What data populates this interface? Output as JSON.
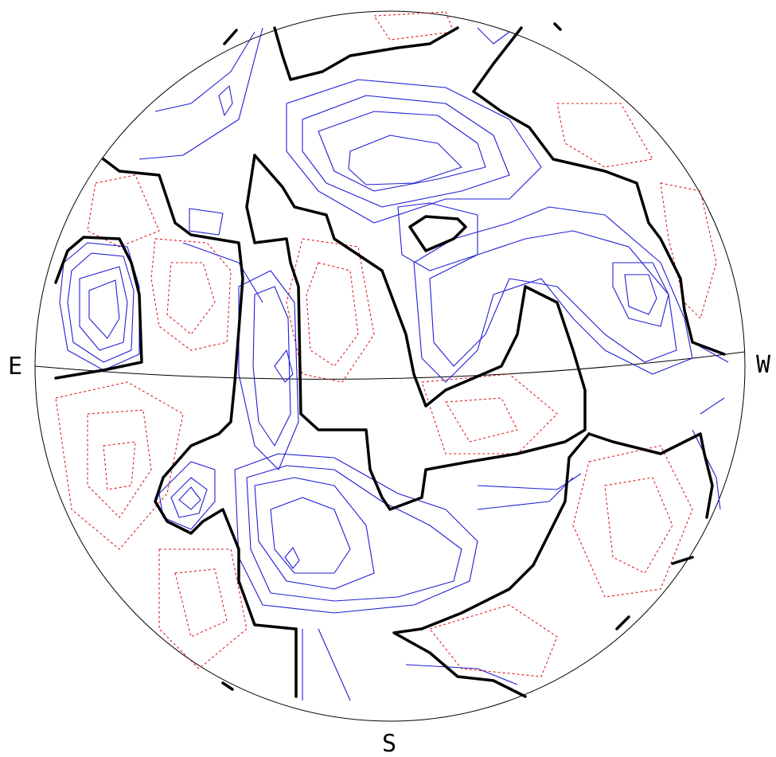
{
  "chart_data": {
    "type": "contour",
    "labels": {
      "east": "E",
      "west": "W",
      "south": "S"
    },
    "line_styles": {
      "zero_contour": "#000000",
      "positive_contours": "#1f1fd6",
      "negative_contours": "#e11d1d"
    }
  }
}
